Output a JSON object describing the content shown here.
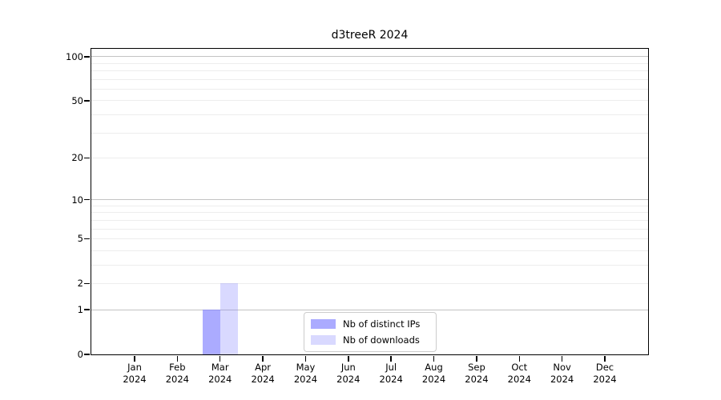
{
  "chart_data": {
    "type": "bar",
    "title": "d3treeR 2024",
    "year_label": "2024",
    "categories": [
      "Jan",
      "Feb",
      "Mar",
      "Apr",
      "May",
      "Jun",
      "Jul",
      "Aug",
      "Sep",
      "Oct",
      "Nov",
      "Dec"
    ],
    "series": [
      {
        "name": "Nb of distinct IPs",
        "color": "#8080FFA8",
        "values": [
          0,
          0,
          1,
          0,
          0,
          0,
          0,
          0,
          0,
          0,
          0,
          0
        ]
      },
      {
        "name": "Nb of downloads",
        "color": "#8080FF4D",
        "values": [
          0,
          0,
          2,
          0,
          0,
          0,
          0,
          0,
          0,
          0,
          0,
          0
        ]
      }
    ],
    "yscale": "log1p",
    "ylim": [
      0,
      113
    ],
    "yticks": [
      0,
      1,
      2,
      5,
      10,
      20,
      50,
      100
    ],
    "grid": {
      "major": [
        1,
        10,
        100
      ],
      "minor": [
        2,
        3,
        4,
        5,
        6,
        7,
        8,
        9,
        20,
        30,
        40,
        50,
        60,
        70,
        80,
        90
      ],
      "on": true
    },
    "legend": {
      "position": "lower-center-inside"
    },
    "colors": {
      "grid_major": "#c3c3c3",
      "grid_minor": "#ededed",
      "axis": "#000000",
      "background": "#ffffff"
    }
  }
}
